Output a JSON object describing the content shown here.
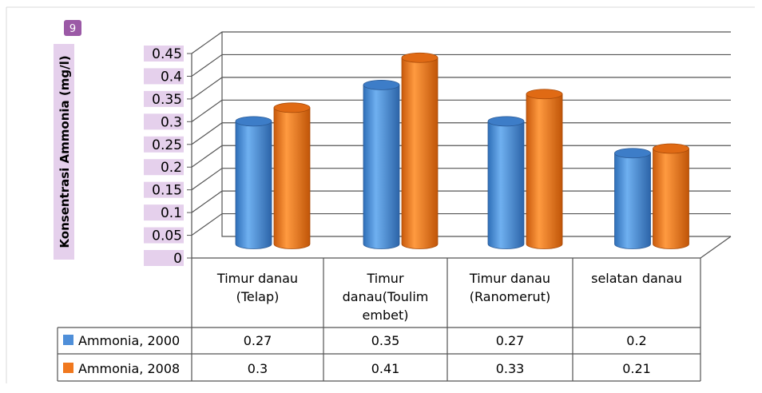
{
  "badge": "9",
  "colors": {
    "series_2000": "#4f8fd9",
    "series_2008": "#f0781e",
    "grid": "#555555",
    "tick_highlight": "#e5d0ec",
    "badge": "#9b59a6"
  },
  "chart_data": {
    "type": "bar",
    "ylabel": "Konsentrasi Ammonia (mg/l)",
    "xlabel": "",
    "ylim": [
      0,
      0.45
    ],
    "y_ticks": [
      "0",
      "0.05",
      "0.1",
      "0.15",
      "0.2",
      "0.25",
      "0.3",
      "0.35",
      "0.4",
      "0.45"
    ],
    "grid": true,
    "legend": "bottom-left data table",
    "categories": [
      [
        "Timur danau",
        "(Telap)"
      ],
      [
        "Timur",
        "danau(Toulim",
        "embet)"
      ],
      [
        "Timur danau",
        "(Ranomerut)"
      ],
      [
        "selatan danau"
      ]
    ],
    "series": [
      {
        "name": "Ammonia, 2000",
        "values": [
          0.27,
          0.35,
          0.27,
          0.2
        ],
        "labels": [
          "0.27",
          "0.35",
          "0.27",
          "0.2"
        ]
      },
      {
        "name": "Ammonia, 2008",
        "values": [
          0.3,
          0.41,
          0.33,
          0.21
        ],
        "labels": [
          "0.3",
          "0.41",
          "0.33",
          "0.21"
        ]
      }
    ]
  }
}
